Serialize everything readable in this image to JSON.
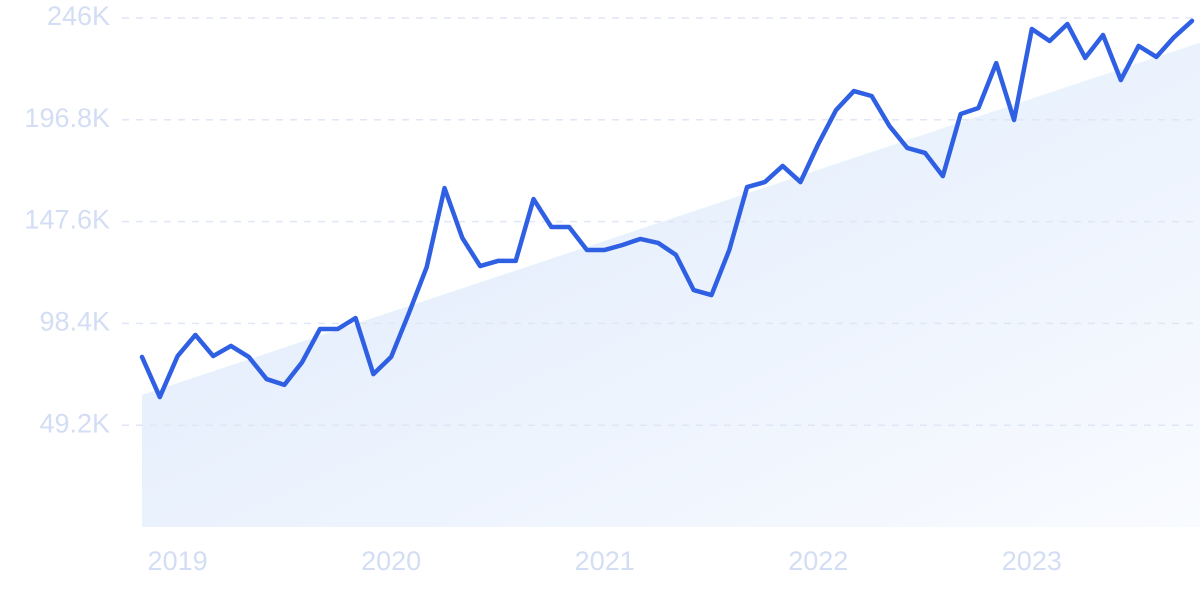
{
  "chart_data": {
    "type": "line",
    "categories": [
      null,
      null,
      "2019",
      null,
      null,
      null,
      null,
      null,
      null,
      null,
      null,
      null,
      null,
      null,
      "2020",
      null,
      null,
      null,
      null,
      null,
      null,
      null,
      null,
      null,
      null,
      null,
      "2021",
      null,
      null,
      null,
      null,
      null,
      null,
      null,
      null,
      null,
      null,
      null,
      "2022",
      null,
      null,
      null,
      null,
      null,
      null,
      null,
      null,
      null,
      null,
      null,
      "2023",
      null,
      null,
      null,
      null,
      null,
      null,
      null,
      null,
      null
    ],
    "values": [
      82200,
      62800,
      82600,
      92800,
      82600,
      87500,
      82200,
      71500,
      68700,
      79700,
      95700,
      95700,
      101000,
      73900,
      82200,
      103400,
      125700,
      163800,
      139700,
      126100,
      128600,
      128600,
      158500,
      145000,
      145000,
      133900,
      133900,
      136300,
      139200,
      137300,
      131500,
      114500,
      112100,
      133900,
      164300,
      166700,
      174500,
      166700,
      185100,
      201500,
      210700,
      208300,
      193800,
      183200,
      180800,
      169600,
      199600,
      202500,
      224200,
      196700,
      240700,
      234900,
      243100,
      226700,
      237800,
      216000,
      232500,
      227200,
      236800,
      244600
    ],
    "color": "#2f5fe3",
    "trend": [
      63800,
      235400
    ],
    "ylim": [
      0,
      246000
    ],
    "yticks": [
      {
        "value": 49200,
        "label": "49.2K"
      },
      {
        "value": 98400,
        "label": "98.4K"
      },
      {
        "value": 147600,
        "label": "147.6K"
      },
      {
        "value": 196800,
        "label": "196.8K"
      },
      {
        "value": 246000,
        "label": "246K"
      }
    ],
    "grid": true
  }
}
